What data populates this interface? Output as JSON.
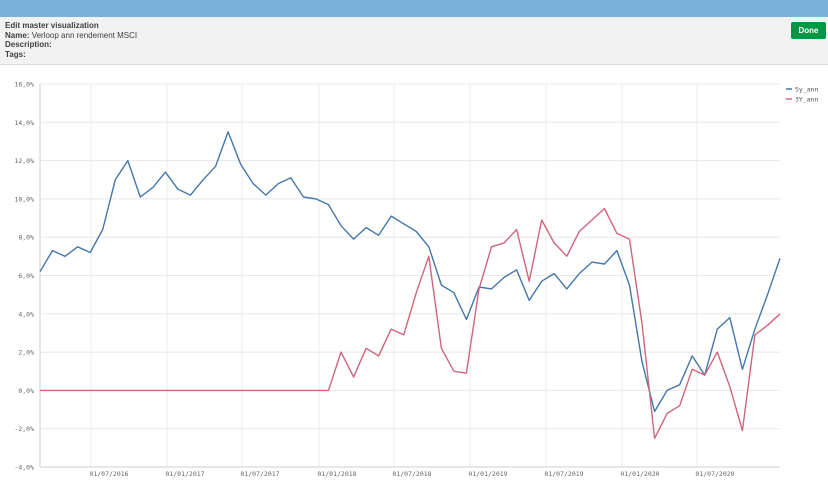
{
  "panel": {
    "heading": "Edit master visualization",
    "name_label": "Name:",
    "name_value": "Verloop ann rendement MSCI",
    "description_label": "Description:",
    "tags_label": "Tags:",
    "done_label": "Done"
  },
  "colors": {
    "topbar": "#7ab3d9",
    "done": "#009845",
    "series_5y": "#4477aa",
    "series_3y": "#d0657e"
  },
  "chart_data": {
    "type": "line",
    "title": "",
    "xlabel": "",
    "ylabel": "",
    "ylim": [
      -4,
      16
    ],
    "y_ticks": [
      "16,0%",
      "14,0%",
      "12,0%",
      "10,0%",
      "8,0%",
      "6,0%",
      "4,0%",
      "2,0%",
      "0,0%",
      "-2,0%",
      "-4,0%"
    ],
    "x_ticks": [
      "01/07/2016",
      "01/01/2017",
      "01/07/2017",
      "01/01/2018",
      "01/07/2018",
      "01/01/2019",
      "01/07/2019",
      "01/01/2020",
      "01/07/2020"
    ],
    "legend_position": "top-right",
    "series": [
      {
        "name": "5y_ann",
        "values": [
          6.2,
          7.3,
          7.0,
          7.5,
          7.2,
          8.4,
          11.0,
          12.0,
          10.1,
          10.6,
          11.4,
          10.5,
          10.2,
          11.0,
          11.7,
          13.5,
          11.8,
          10.8,
          10.2,
          10.8,
          11.1,
          10.1,
          10.0,
          9.7,
          8.6,
          7.9,
          8.5,
          8.1,
          9.1,
          8.7,
          8.3,
          7.5,
          5.5,
          5.1,
          3.7,
          5.4,
          5.3,
          5.9,
          6.3,
          4.7,
          5.7,
          6.1,
          5.3,
          6.1,
          6.7,
          6.6,
          7.3,
          5.5,
          1.5,
          -1.1,
          0.0,
          0.3,
          1.8,
          0.8,
          3.2,
          3.8,
          1.1,
          3.2,
          5.0,
          6.9
        ]
      },
      {
        "name": "3Y_ann",
        "values": [
          0.0,
          0.0,
          0.0,
          0.0,
          0.0,
          0.0,
          0.0,
          0.0,
          0.0,
          0.0,
          0.0,
          0.0,
          0.0,
          0.0,
          0.0,
          0.0,
          0.0,
          0.0,
          0.0,
          0.0,
          0.0,
          0.0,
          0.0,
          0.0,
          2.0,
          0.7,
          2.2,
          1.8,
          3.2,
          2.9,
          5.1,
          7.0,
          2.2,
          1.0,
          0.9,
          5.3,
          7.5,
          7.7,
          8.4,
          5.7,
          8.9,
          7.7,
          7.0,
          8.3,
          8.9,
          9.5,
          8.2,
          7.9,
          3.5,
          -2.5,
          -1.2,
          -0.8,
          1.1,
          0.8,
          2.0,
          0.2,
          -2.1,
          2.9,
          3.4,
          4.0
        ]
      }
    ]
  }
}
